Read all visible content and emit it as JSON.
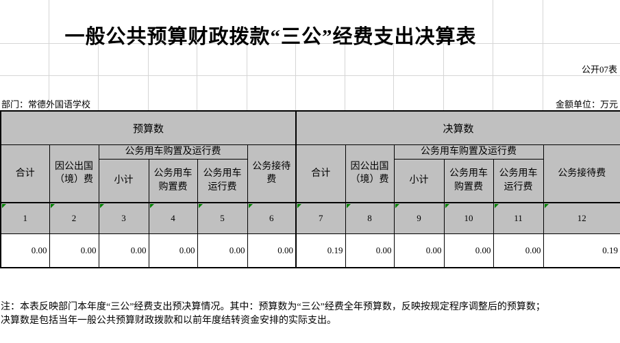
{
  "sheet": {
    "title": "一般公共预算财政拨款“三公”经费支出决算表",
    "table_code": "公开07表",
    "department": "部门：常德外国语学校",
    "unit": "金额单位：万元",
    "note_line1": "注：本表反映部门本年度“三公”经费支出预决算情况。其中：预算数为“三公”经费全年预算数，反映按规定程序调整后的预算数；",
    "note_line2": "决算数是包括当年一般公共预算财政拨款和以前年度结转资金安排的实际支出。"
  },
  "table": {
    "section_headers": {
      "budget": "预算数",
      "final": "决算数"
    },
    "col_headers": {
      "total": "合计",
      "abroad": "因公出国（境）费",
      "vehicle_group": "公务用车购置及运行费",
      "vehicle_subtotal": "小计",
      "vehicle_purchase": "公务用车购置费",
      "vehicle_operation": "公务用车运行费",
      "reception": "公务接待费"
    },
    "column_numbers": [
      "1",
      "2",
      "3",
      "4",
      "5",
      "6",
      "7",
      "8",
      "9",
      "10",
      "11",
      "12"
    ],
    "values": [
      "0.00",
      "0.00",
      "0.00",
      "0.00",
      "0.00",
      "0.00",
      "0.19",
      "0.00",
      "0.00",
      "0.00",
      "0.00",
      "0.19"
    ]
  },
  "colors": {
    "header_fill": "#c0c0c0",
    "cell_border": "#000000",
    "gridline": "#d5d5d5",
    "error_triangle": "#008000"
  }
}
